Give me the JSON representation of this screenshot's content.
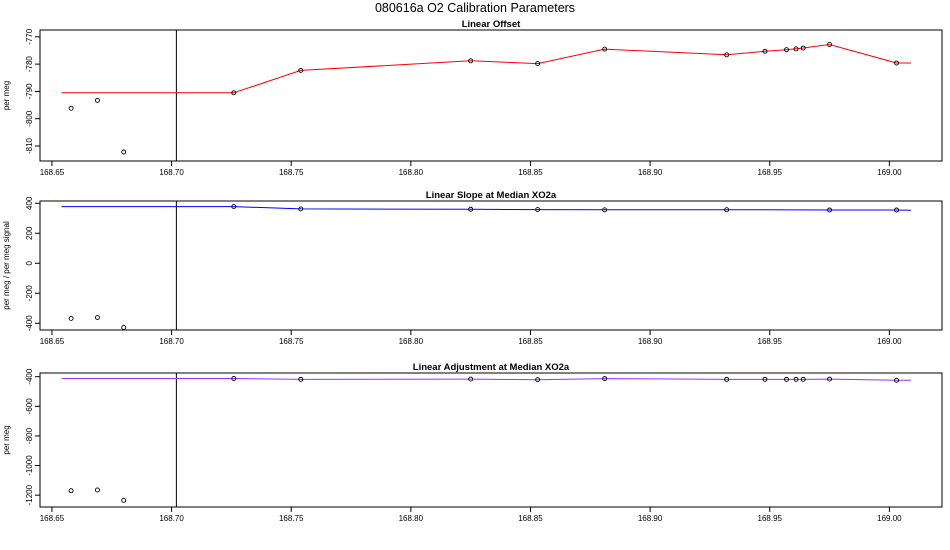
{
  "title": "080616a   O2 Calibration Parameters",
  "chart_data": [
    {
      "type": "line",
      "title": "Linear Offset",
      "ylabel": "per meg",
      "color": "#ff0000",
      "xlim": [
        168.645,
        169.022
      ],
      "ylim": [
        -815.5,
        -767.5
      ],
      "xticks": [
        "168.65",
        "168.70",
        "168.75",
        "168.80",
        "168.85",
        "168.90",
        "168.95",
        "169.00"
      ],
      "yticks": [
        "-770",
        "-780",
        "-790",
        "-800",
        "-810"
      ],
      "vline": 168.702,
      "line": {
        "x": [
          168.654,
          168.726,
          168.754,
          168.825,
          168.853,
          168.881,
          168.932,
          168.948,
          168.957,
          168.961,
          168.964,
          168.975,
          169.003,
          169.009
        ],
        "y": [
          -790.5,
          -790.5,
          -782.3,
          -778.8,
          -779.8,
          -774.5,
          -776.6,
          -775.3,
          -774.7,
          -774.4,
          -774.1,
          -772.8,
          -779.6,
          -779.6
        ]
      },
      "points": {
        "x": [
          168.658,
          168.669,
          168.68,
          168.726,
          168.754,
          168.825,
          168.853,
          168.881,
          168.932,
          168.948,
          168.957,
          168.961,
          168.964,
          168.975,
          169.003
        ],
        "y": [
          -796.2,
          -793.3,
          -812.2,
          -790.5,
          -782.3,
          -778.8,
          -779.8,
          -774.5,
          -776.6,
          -775.3,
          -774.7,
          -774.4,
          -774.1,
          -772.8,
          -779.6
        ]
      }
    },
    {
      "type": "line",
      "title": "Linear Slope at Median XO2a",
      "ylabel": "per meg / per meg signal",
      "color": "#0000ff",
      "xlim": [
        168.645,
        169.022
      ],
      "ylim": [
        -445,
        415
      ],
      "xticks": [
        "168.65",
        "168.70",
        "168.75",
        "168.80",
        "168.85",
        "168.90",
        "168.95",
        "169.00"
      ],
      "yticks": [
        "400",
        "200",
        "0",
        "-200",
        "-400"
      ],
      "vline": 168.702,
      "line": {
        "x": [
          168.654,
          168.726,
          168.754,
          168.825,
          168.853,
          168.881,
          168.932,
          168.975,
          169.003,
          169.009
        ],
        "y": [
          378,
          378,
          362,
          360,
          358,
          356,
          357,
          355,
          355,
          353
        ]
      },
      "points": {
        "x": [
          168.658,
          168.669,
          168.68,
          168.726,
          168.754,
          168.825,
          168.853,
          168.881,
          168.932,
          168.975,
          169.003
        ],
        "y": [
          -368,
          -362,
          -428,
          378,
          362,
          360,
          358,
          356,
          357,
          355,
          355
        ]
      }
    },
    {
      "type": "line",
      "title": "Linear Adjustment at Median XO2a",
      "ylabel": "per meg",
      "color": "#9b30ff",
      "xlim": [
        168.645,
        169.022
      ],
      "ylim": [
        -1280,
        -375
      ],
      "xticks": [
        "168.65",
        "168.70",
        "168.75",
        "168.80",
        "168.85",
        "168.90",
        "168.95",
        "169.00"
      ],
      "yticks": [
        "-400",
        "-600",
        "-800",
        "-1000",
        "-1200"
      ],
      "vline": 168.702,
      "line": {
        "x": [
          168.654,
          168.726,
          168.754,
          168.825,
          168.853,
          168.881,
          168.932,
          168.948,
          168.957,
          168.961,
          168.964,
          168.975,
          169.003,
          169.009
        ],
        "y": [
          -412,
          -412,
          -418,
          -416,
          -420,
          -413,
          -418,
          -418,
          -418,
          -418,
          -418,
          -416,
          -424,
          -424
        ]
      },
      "points": {
        "x": [
          168.658,
          168.669,
          168.68,
          168.726,
          168.754,
          168.825,
          168.853,
          168.881,
          168.932,
          168.948,
          168.957,
          168.961,
          168.964,
          168.975,
          169.003
        ],
        "y": [
          -1170,
          -1165,
          -1235,
          -412,
          -418,
          -416,
          -420,
          -413,
          -418,
          -418,
          -418,
          -418,
          -418,
          -416,
          -424
        ]
      }
    }
  ]
}
